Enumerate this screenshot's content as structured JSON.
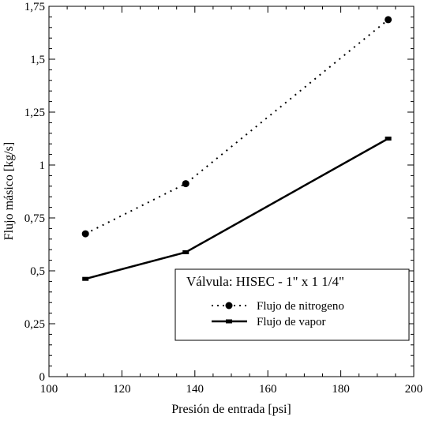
{
  "chart_data": {
    "type": "line",
    "xlabel": "Presión de entrada [psi]",
    "ylabel": "Flujo másico [kg/s]",
    "xlim": [
      100,
      200
    ],
    "ylim": [
      0,
      1.75
    ],
    "xticks": [
      100,
      120,
      140,
      160,
      180,
      200
    ],
    "yticks": [
      0,
      0.25,
      0.5,
      0.75,
      1,
      1.25,
      1.5,
      1.75
    ],
    "xtick_labels": [
      "100",
      "120",
      "140",
      "160",
      "180",
      "200"
    ],
    "ytick_labels": [
      "0",
      "0,25",
      "0,5",
      "0,75",
      "1",
      "1,25",
      "1,5",
      "1,75"
    ],
    "grid": false,
    "legend": {
      "title": "Válvula: HISEC - 1\" x 1 1/4\"",
      "placement": "bottom-right"
    },
    "series": [
      {
        "name": "Flujo de nitrogeno",
        "style": "dotted",
        "marker": "circle",
        "color": "#000000",
        "x": [
          110,
          137.5,
          193
        ],
        "y": [
          0.675,
          0.912,
          1.687
        ]
      },
      {
        "name": "Flujo de vapor",
        "style": "solid",
        "marker": "square",
        "color": "#000000",
        "x": [
          110,
          137.5,
          193
        ],
        "y": [
          0.462,
          0.588,
          1.125
        ]
      }
    ]
  }
}
